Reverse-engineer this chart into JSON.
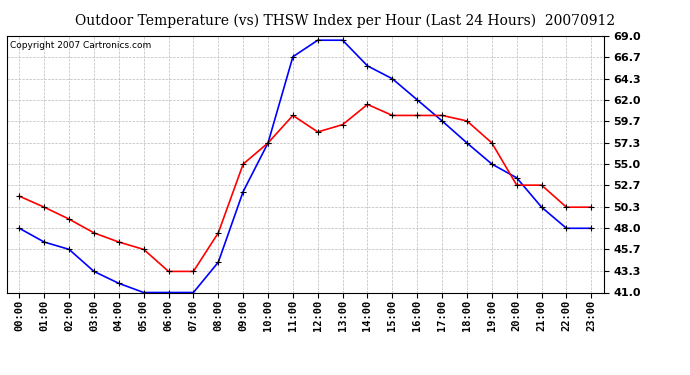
{
  "title": "Outdoor Temperature (vs) THSW Index per Hour (Last 24 Hours)  20070912",
  "copyright_text": "Copyright 2007 Cartronics.com",
  "hours": [
    "00:00",
    "01:00",
    "02:00",
    "03:00",
    "04:00",
    "05:00",
    "06:00",
    "07:00",
    "08:00",
    "09:00",
    "10:00",
    "11:00",
    "12:00",
    "13:00",
    "14:00",
    "15:00",
    "16:00",
    "17:00",
    "18:00",
    "19:00",
    "20:00",
    "21:00",
    "22:00",
    "23:00"
  ],
  "thsw_blue": [
    48.0,
    46.5,
    45.7,
    43.3,
    42.0,
    41.0,
    41.0,
    41.0,
    44.3,
    52.0,
    57.3,
    66.7,
    68.5,
    68.5,
    65.7,
    64.3,
    62.0,
    59.7,
    57.3,
    55.0,
    53.5,
    50.3,
    48.0,
    48.0
  ],
  "temp_red": [
    51.5,
    50.3,
    49.0,
    47.5,
    46.5,
    45.7,
    43.3,
    43.3,
    47.5,
    55.0,
    57.3,
    60.3,
    58.5,
    59.3,
    61.5,
    60.3,
    60.3,
    60.3,
    59.7,
    57.3,
    52.7,
    52.7,
    50.3,
    50.3
  ],
  "ylim": [
    41.0,
    69.0
  ],
  "yticks": [
    41.0,
    43.3,
    45.7,
    48.0,
    50.3,
    52.7,
    55.0,
    57.3,
    59.7,
    62.0,
    64.3,
    66.7,
    69.0
  ],
  "blue_color": "#0000ff",
  "red_color": "#ff0000",
  "marker_color": "#000000",
  "bg_color": "#ffffff",
  "grid_color": "#bbbbbb",
  "title_fontsize": 10,
  "copyright_fontsize": 6.5,
  "tick_fontsize": 7.5,
  "ytick_fontsize": 8,
  "linewidth": 1.2,
  "markersize": 4
}
